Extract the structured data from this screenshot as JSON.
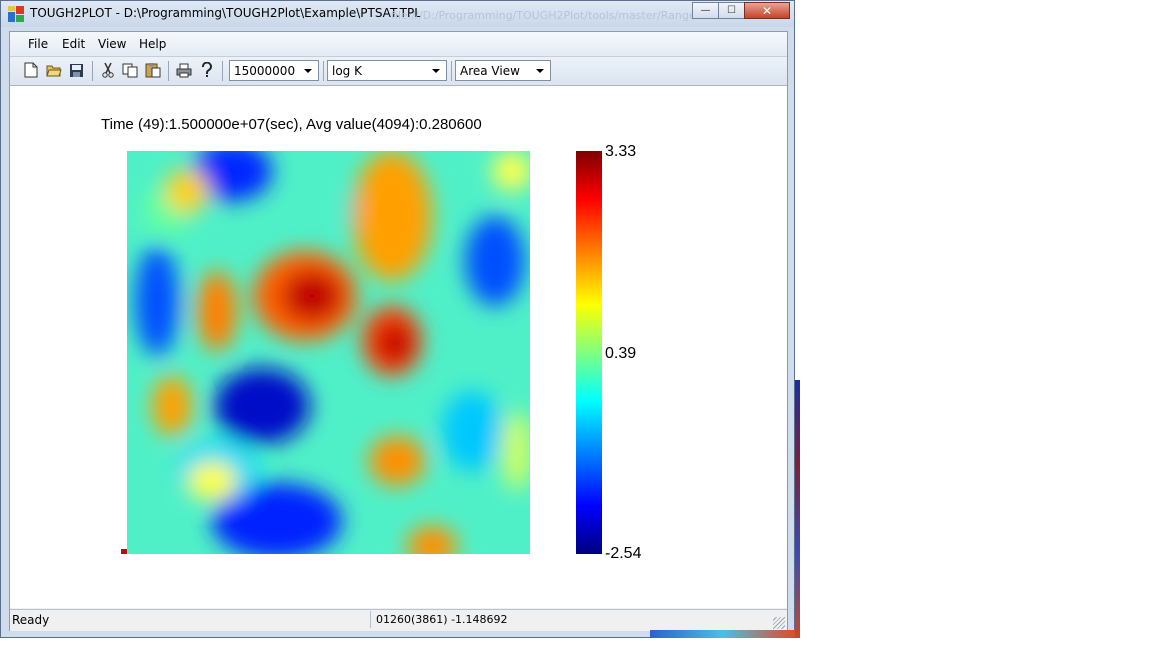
{
  "window": {
    "title": "TOUGH2PLOT - D:\\Programming\\TOUGH2Plot\\Example\\PTSAT.TPL",
    "ghost_title": "file:///D:/Programming/TOUGH2Plot/tools/master/Range",
    "buttons": {
      "minimize": "—",
      "maximize": "☐",
      "close": "✕"
    }
  },
  "menu": {
    "items": [
      "File",
      "Edit",
      "View",
      "Help"
    ]
  },
  "toolbar": {
    "icons": [
      "new-file-icon",
      "open-folder-icon",
      "save-icon",
      "cut-icon",
      "copy-icon",
      "paste-icon",
      "print-icon",
      "help-icon"
    ],
    "time_select": "15000000",
    "variable_select": "log K",
    "view_select": "Area View"
  },
  "plot": {
    "title": "Time (49):1.500000e+07(sec),  Avg value(4094):0.280600"
  },
  "colorbar": {
    "max_label": "3.33",
    "mid_label": "0.39",
    "min_label": "-2.54",
    "colors": [
      "#7f0000",
      "#ff0000",
      "#ff8000",
      "#ffff00",
      "#80ff80",
      "#00ffff",
      "#0080ff",
      "#0000ff",
      "#00007f"
    ]
  },
  "status": {
    "left": "Ready",
    "right": "01260(3861)  -1.148692"
  }
}
